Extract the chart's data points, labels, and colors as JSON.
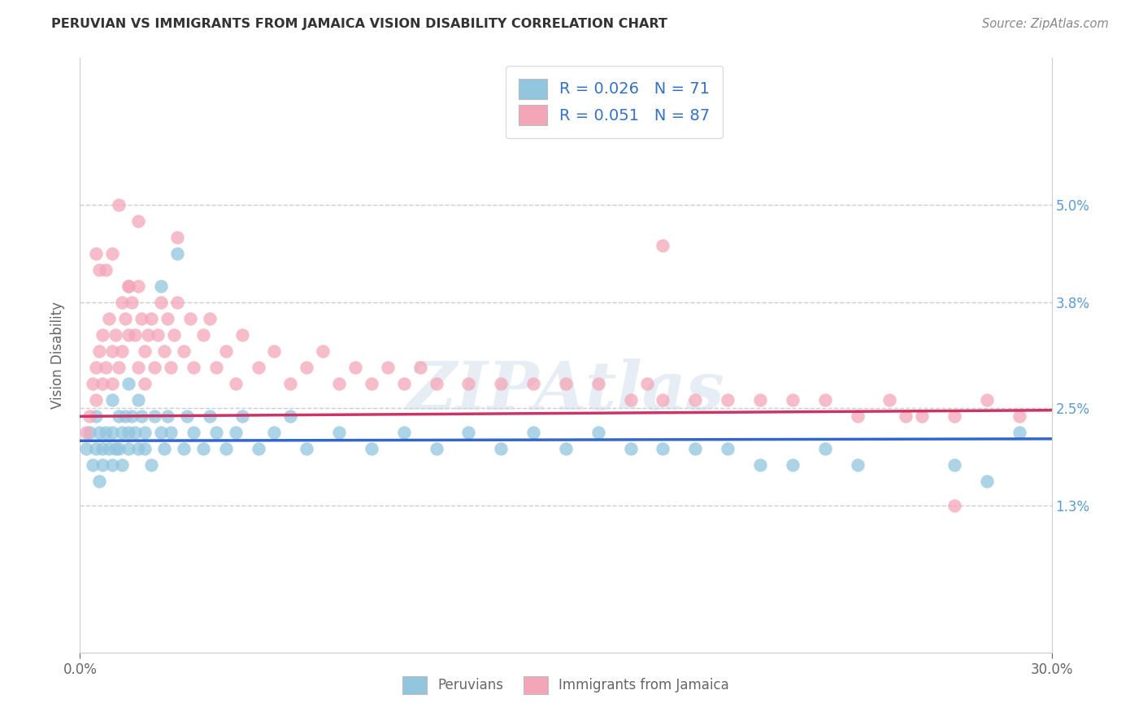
{
  "title": "PERUVIAN VS IMMIGRANTS FROM JAMAICA VISION DISABILITY CORRELATION CHART",
  "source_text": "Source: ZipAtlas.com",
  "ylabel": "Vision Disability",
  "xlim": [
    0.0,
    0.3
  ],
  "ylim": [
    -0.005,
    0.068
  ],
  "yticks": [
    0.013,
    0.025,
    0.038,
    0.05
  ],
  "ytick_labels": [
    "1.3%",
    "2.5%",
    "3.8%",
    "5.0%"
  ],
  "xticks": [
    0.0,
    0.3
  ],
  "xtick_labels": [
    "0.0%",
    "30.0%"
  ],
  "legend_r1": "R = 0.026",
  "legend_n1": "N = 71",
  "legend_r2": "R = 0.051",
  "legend_n2": "N = 87",
  "color_blue": "#92c5de",
  "color_pink": "#f4a6b8",
  "line_color_blue": "#3366cc",
  "line_color_pink": "#cc3366",
  "watermark": "ZIPAtlas",
  "blue_intercept": 0.021,
  "blue_slope": 0.0008,
  "pink_intercept": 0.024,
  "pink_slope": 0.0025,
  "blue_x": [
    0.002,
    0.003,
    0.004,
    0.005,
    0.005,
    0.006,
    0.006,
    0.007,
    0.007,
    0.008,
    0.009,
    0.01,
    0.01,
    0.01,
    0.011,
    0.012,
    0.012,
    0.013,
    0.013,
    0.014,
    0.015,
    0.015,
    0.015,
    0.016,
    0.017,
    0.018,
    0.018,
    0.019,
    0.02,
    0.02,
    0.022,
    0.023,
    0.025,
    0.025,
    0.026,
    0.027,
    0.028,
    0.03,
    0.032,
    0.033,
    0.035,
    0.038,
    0.04,
    0.042,
    0.045,
    0.048,
    0.05,
    0.055,
    0.06,
    0.065,
    0.07,
    0.08,
    0.09,
    0.1,
    0.11,
    0.12,
    0.13,
    0.14,
    0.15,
    0.16,
    0.17,
    0.18,
    0.19,
    0.2,
    0.21,
    0.22,
    0.23,
    0.24,
    0.27,
    0.28,
    0.29
  ],
  "blue_y": [
    0.02,
    0.022,
    0.018,
    0.024,
    0.02,
    0.022,
    0.016,
    0.02,
    0.018,
    0.022,
    0.02,
    0.026,
    0.022,
    0.018,
    0.02,
    0.024,
    0.02,
    0.018,
    0.022,
    0.024,
    0.028,
    0.022,
    0.02,
    0.024,
    0.022,
    0.026,
    0.02,
    0.024,
    0.022,
    0.02,
    0.018,
    0.024,
    0.04,
    0.022,
    0.02,
    0.024,
    0.022,
    0.044,
    0.02,
    0.024,
    0.022,
    0.02,
    0.024,
    0.022,
    0.02,
    0.022,
    0.024,
    0.02,
    0.022,
    0.024,
    0.02,
    0.022,
    0.02,
    0.022,
    0.02,
    0.022,
    0.02,
    0.022,
    0.02,
    0.022,
    0.02,
    0.02,
    0.02,
    0.02,
    0.018,
    0.018,
    0.02,
    0.018,
    0.018,
    0.016,
    0.022
  ],
  "pink_x": [
    0.002,
    0.003,
    0.004,
    0.005,
    0.005,
    0.006,
    0.007,
    0.007,
    0.008,
    0.009,
    0.01,
    0.01,
    0.011,
    0.012,
    0.013,
    0.013,
    0.014,
    0.015,
    0.015,
    0.016,
    0.017,
    0.018,
    0.018,
    0.019,
    0.02,
    0.02,
    0.021,
    0.022,
    0.023,
    0.024,
    0.025,
    0.026,
    0.027,
    0.028,
    0.029,
    0.03,
    0.032,
    0.034,
    0.035,
    0.038,
    0.04,
    0.042,
    0.045,
    0.048,
    0.05,
    0.055,
    0.06,
    0.065,
    0.07,
    0.075,
    0.08,
    0.085,
    0.09,
    0.095,
    0.1,
    0.105,
    0.11,
    0.12,
    0.13,
    0.14,
    0.15,
    0.16,
    0.17,
    0.175,
    0.18,
    0.19,
    0.2,
    0.21,
    0.22,
    0.23,
    0.24,
    0.25,
    0.255,
    0.26,
    0.27,
    0.28,
    0.29,
    0.18,
    0.03,
    0.018,
    0.015,
    0.012,
    0.01,
    0.008,
    0.006,
    0.005,
    0.27
  ],
  "pink_y": [
    0.022,
    0.024,
    0.028,
    0.03,
    0.026,
    0.032,
    0.028,
    0.034,
    0.03,
    0.036,
    0.032,
    0.028,
    0.034,
    0.03,
    0.038,
    0.032,
    0.036,
    0.04,
    0.034,
    0.038,
    0.034,
    0.04,
    0.03,
    0.036,
    0.032,
    0.028,
    0.034,
    0.036,
    0.03,
    0.034,
    0.038,
    0.032,
    0.036,
    0.03,
    0.034,
    0.038,
    0.032,
    0.036,
    0.03,
    0.034,
    0.036,
    0.03,
    0.032,
    0.028,
    0.034,
    0.03,
    0.032,
    0.028,
    0.03,
    0.032,
    0.028,
    0.03,
    0.028,
    0.03,
    0.028,
    0.03,
    0.028,
    0.028,
    0.028,
    0.028,
    0.028,
    0.028,
    0.026,
    0.028,
    0.026,
    0.026,
    0.026,
    0.026,
    0.026,
    0.026,
    0.024,
    0.026,
    0.024,
    0.024,
    0.024,
    0.026,
    0.024,
    0.045,
    0.046,
    0.048,
    0.04,
    0.05,
    0.044,
    0.042,
    0.042,
    0.044,
    0.013
  ],
  "background_color": "#ffffff",
  "grid_color": "#cccccc"
}
